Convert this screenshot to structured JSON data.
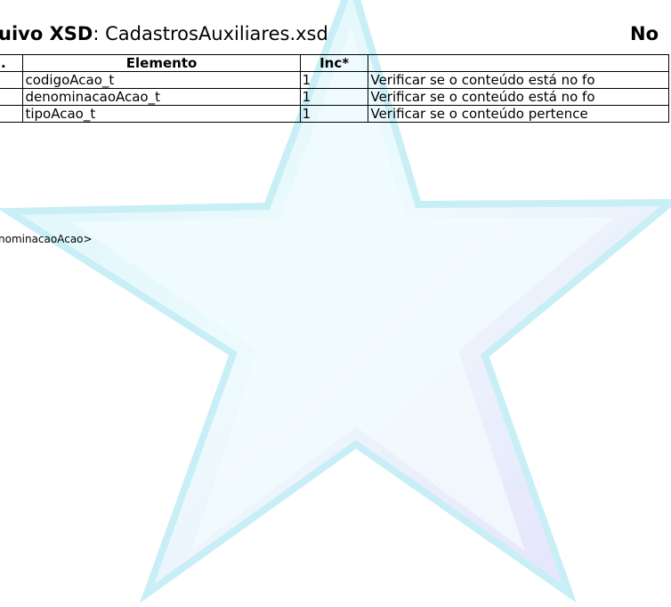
{
  "header": {
    "title_bold": "uivo XSD",
    "title_rest": ": CadastrosAuxiliares.xsd",
    "right_bold": "No"
  },
  "table": {
    "headers": [
      ".",
      "Elemento",
      "Inc*"
    ],
    "rows": [
      [
        "codigoAcao_t",
        "1",
        "Verificar se o conteúdo está no fo"
      ],
      [
        "denominacaoAcao_t",
        "1",
        "Verificar se o conteúdo está no fo"
      ],
      [
        "tipoAcao_t",
        "1",
        "Verificar se o conteúdo pertence"
      ]
    ]
  },
  "code_line": "nominacaoAcao>"
}
